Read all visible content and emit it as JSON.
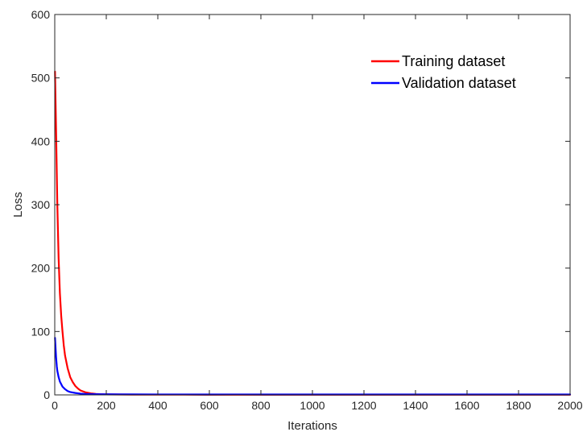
{
  "chart_data": {
    "type": "line",
    "title": "",
    "xlabel": "Iterations",
    "ylabel": "Loss",
    "xlim": [
      0,
      2000
    ],
    "ylim": [
      0,
      600
    ],
    "xticks": [
      0,
      200,
      400,
      600,
      800,
      1000,
      1200,
      1400,
      1600,
      1800,
      2000
    ],
    "yticks": [
      0,
      100,
      200,
      300,
      400,
      500,
      600
    ],
    "xtick_labels": [
      "0",
      "200",
      "400",
      "600",
      "800",
      "1000",
      "1200",
      "1400",
      "1600",
      "1800",
      "2000"
    ],
    "ytick_labels": [
      "0",
      "100",
      "200",
      "300",
      "400",
      "500",
      "600"
    ],
    "grid": false,
    "legend_position": "top-right",
    "series": [
      {
        "name": "Training dataset",
        "color": "#ff0000",
        "x": [
          1,
          5,
          10,
          15,
          20,
          25,
          30,
          35,
          40,
          50,
          60,
          70,
          80,
          90,
          100,
          120,
          140,
          160,
          180,
          200,
          250,
          300,
          400,
          500,
          600,
          800,
          1000,
          1200,
          1400,
          1600,
          1800,
          2000
        ],
        "y": [
          510,
          420,
          300,
          215,
          160,
          125,
          100,
          78,
          62,
          42,
          28,
          20,
          14,
          10,
          7,
          4,
          2.5,
          1.5,
          1,
          0.8,
          0.6,
          0.5,
          0.4,
          0.4,
          0.3,
          0.3,
          0.3,
          0.3,
          0.3,
          0.3,
          0.3,
          0.3
        ]
      },
      {
        "name": "Validation dataset",
        "color": "#0000ff",
        "x": [
          1,
          3,
          5,
          8,
          10,
          15,
          20,
          25,
          30,
          40,
          50,
          60,
          80,
          100,
          120,
          150,
          180,
          200,
          250,
          300,
          400,
          500,
          600,
          700,
          800,
          1000,
          1200,
          1400,
          1600,
          1800,
          2000
        ],
        "y": [
          90,
          75,
          60,
          45,
          38,
          28,
          21,
          17,
          13,
          9,
          6,
          4.5,
          3,
          2,
          1.5,
          1.2,
          1,
          1,
          0.8,
          0.8,
          0.7,
          0.7,
          0.6,
          0.7,
          0.6,
          0.6,
          0.6,
          0.6,
          0.6,
          0.6,
          0.6
        ]
      }
    ]
  }
}
